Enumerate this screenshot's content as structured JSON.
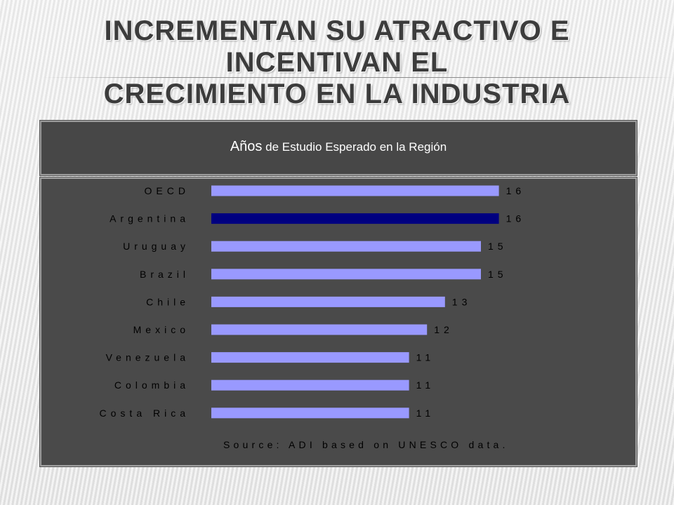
{
  "slide": {
    "title_line1": "INCREMENTAN SU ATRACTIVO  E INCENTIVAN EL",
    "title_line2": "CRECIMIENTO EN LA INDUSTRIA"
  },
  "header": {
    "title_prefix": "Años",
    "title_rest": " de Estudio Esperado en la Región"
  },
  "chart_data": {
    "type": "bar",
    "orientation": "horizontal",
    "categories": [
      "OECD",
      "Argentina",
      "Uruguay",
      "Brazil",
      "Chile",
      "Mexico",
      "Venezuela",
      "Colombia",
      "Costa Rica"
    ],
    "values": [
      16,
      16,
      15,
      15,
      13,
      12,
      11,
      11,
      11
    ],
    "colors": [
      "#9999ff",
      "#000080",
      "#9999ff",
      "#9999ff",
      "#9999ff",
      "#9999ff",
      "#9999ff",
      "#9999ff",
      "#9999ff"
    ],
    "xlim": [
      0,
      16
    ],
    "source": "Source: ADI based on UNESCO data.",
    "grid": false
  }
}
